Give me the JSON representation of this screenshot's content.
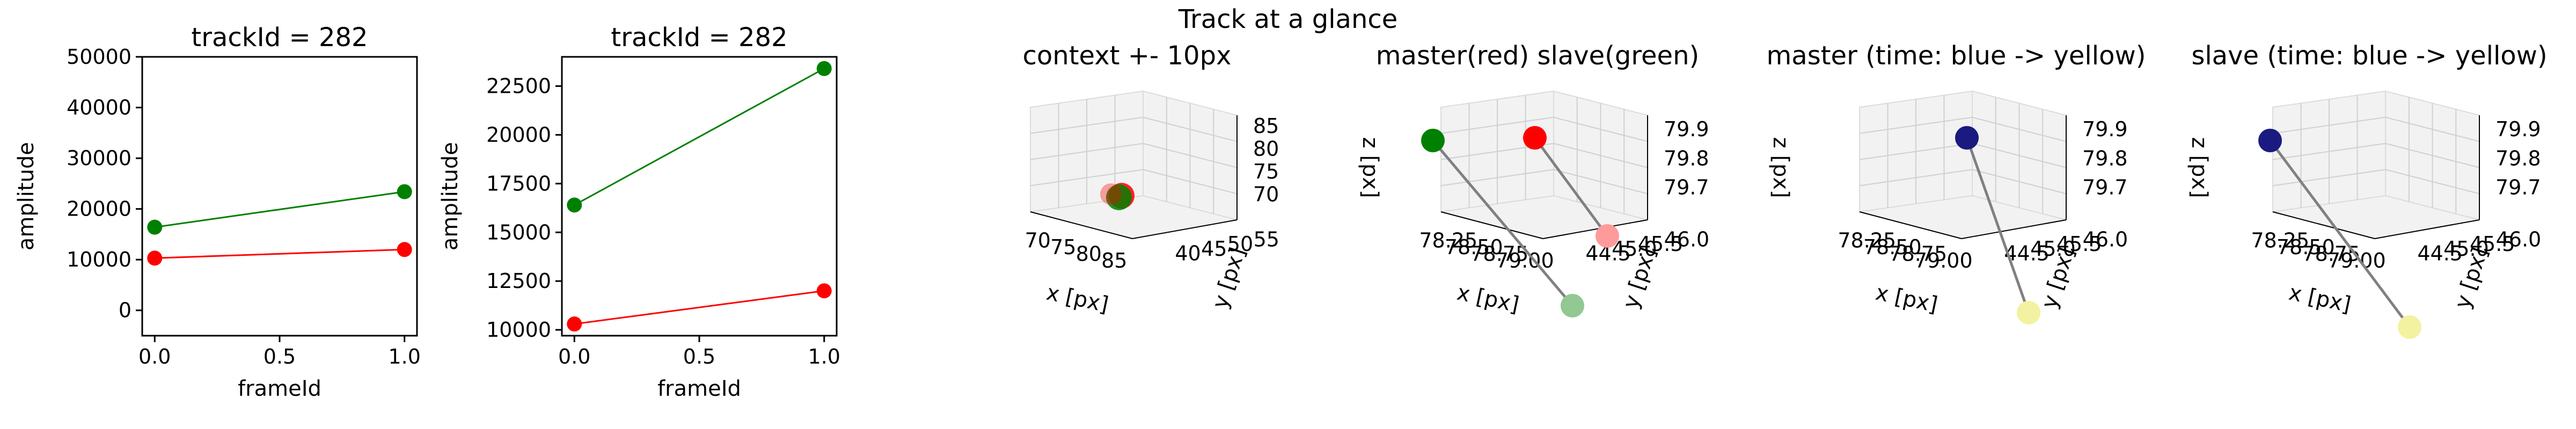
{
  "figure": {
    "suptitle": "Track at a glance"
  },
  "chart_data": [
    {
      "type": "line",
      "title": "trackId = 282",
      "xlabel": "frameId",
      "ylabel": "amplitude",
      "xlim": [
        -0.05,
        1.05
      ],
      "ylim": [
        -5000,
        50000
      ],
      "xticks": [
        "0.0",
        "0.5",
        "1.0"
      ],
      "xtick_values": [
        0,
        0.5,
        1
      ],
      "yticks": [
        "0",
        "10000",
        "20000",
        "30000",
        "40000",
        "50000"
      ],
      "ytick_values": [
        0,
        10000,
        20000,
        30000,
        40000,
        50000
      ],
      "series": [
        {
          "color": "#008000",
          "x": [
            0,
            1
          ],
          "y": [
            16400,
            23400
          ]
        },
        {
          "color": "#ff0000",
          "x": [
            0,
            1
          ],
          "y": [
            10300,
            12000
          ]
        }
      ]
    },
    {
      "type": "line",
      "title": "trackId = 282",
      "xlabel": "frameId",
      "ylabel": "amplitude",
      "xlim": [
        -0.05,
        1.05
      ],
      "ylim": [
        9700,
        24000
      ],
      "xticks": [
        "0.0",
        "0.5",
        "1.0"
      ],
      "xtick_values": [
        0,
        0.5,
        1
      ],
      "yticks": [
        "10000",
        "12500",
        "15000",
        "17500",
        "20000",
        "22500"
      ],
      "ytick_values": [
        10000,
        12500,
        15000,
        17500,
        20000,
        22500
      ],
      "series": [
        {
          "color": "#008000",
          "x": [
            0,
            1
          ],
          "y": [
            16400,
            23400
          ]
        },
        {
          "color": "#ff0000",
          "x": [
            0,
            1
          ],
          "y": [
            10300,
            12000
          ]
        }
      ]
    },
    {
      "type": "scatter",
      "title": "context +- 10px",
      "xlabel": "x [px]",
      "ylabel": "y [px]",
      "zlabel": "z [px]",
      "xticks": [
        "70",
        "75",
        "80",
        "85"
      ],
      "yticks": [
        "40",
        "45",
        "50",
        "55"
      ],
      "zticks": [
        "70",
        "75",
        "80",
        "85"
      ],
      "points": [
        {
          "x": 78.5,
          "y": 45.5,
          "z": 79.8,
          "color": "#ff0000"
        },
        {
          "x": 78.3,
          "y": 45.2,
          "z": 79.8,
          "color": "#008000"
        }
      ]
    },
    {
      "type": "scatter",
      "title": "master(red) slave(green)",
      "xlabel": "x [px]",
      "ylabel": "y [px]",
      "zlabel": "z [px]",
      "xticks": [
        "78.25",
        "78.50",
        "78.75",
        "79.00"
      ],
      "yticks": [
        "44.5",
        "45.0",
        "45.5",
        "46.0"
      ],
      "zticks": [
        "79.7",
        "79.8",
        "79.9"
      ],
      "points": [
        {
          "label": "master t0",
          "color": "#ff0000"
        },
        {
          "label": "master t1",
          "color": "#ff9a9a"
        },
        {
          "label": "slave t0",
          "color": "#008000"
        },
        {
          "label": "slave t1",
          "color": "#92c892"
        }
      ]
    },
    {
      "type": "scatter",
      "title": "master (time: blue -> yellow)",
      "xlabel": "x [px]",
      "ylabel": "y [px]",
      "zlabel": "z [px]",
      "xticks": [
        "78.25",
        "78.50",
        "78.75",
        "79.00"
      ],
      "yticks": [
        "44.5",
        "45.0",
        "45.5",
        "46.0"
      ],
      "zticks": [
        "79.7",
        "79.8",
        "79.9"
      ],
      "points": [
        {
          "label": "t0",
          "color": "#1a1a80"
        },
        {
          "label": "t1",
          "color": "#f2f2a0"
        }
      ]
    },
    {
      "type": "scatter",
      "title": "slave (time: blue -> yellow)",
      "xlabel": "x [px]",
      "ylabel": "y [px]",
      "zlabel": "z [px]",
      "xticks": [
        "78.25",
        "78.50",
        "78.75",
        "79.00"
      ],
      "yticks": [
        "44.5",
        "45.0",
        "45.5",
        "46.0"
      ],
      "zticks": [
        "79.7",
        "79.8",
        "79.9"
      ],
      "points": [
        {
          "label": "t0",
          "color": "#1a1a80"
        },
        {
          "label": "t1",
          "color": "#f2f2a0"
        }
      ]
    }
  ]
}
